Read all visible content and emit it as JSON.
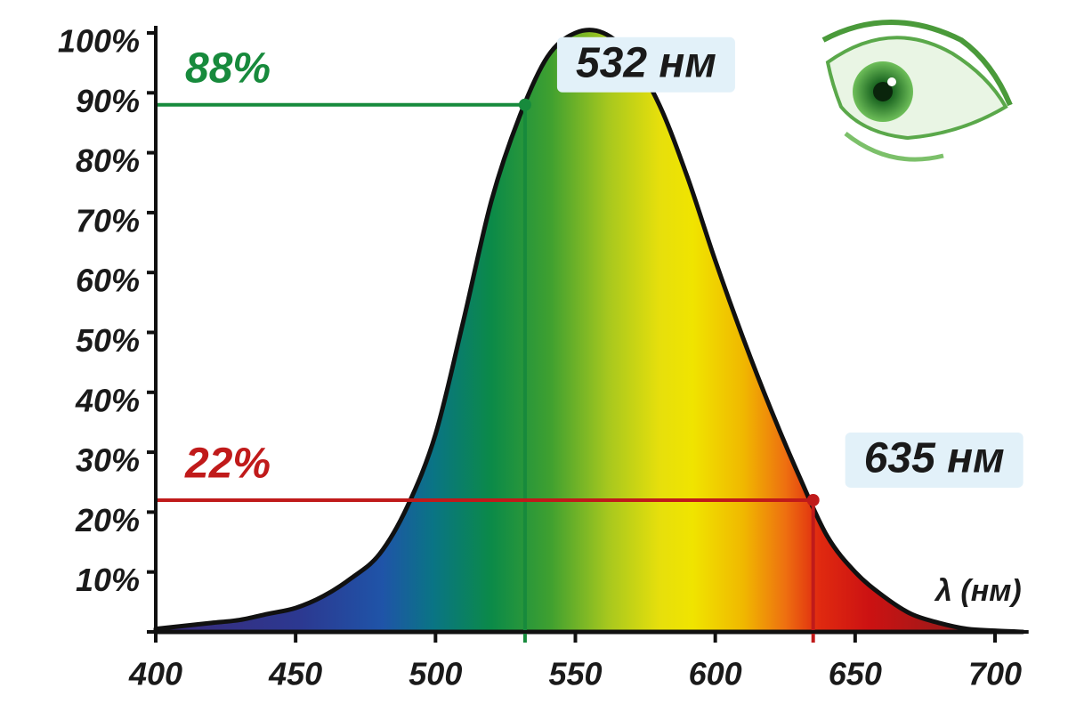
{
  "chart_data": {
    "type": "area",
    "x": [
      400,
      410,
      420,
      430,
      440,
      450,
      460,
      470,
      480,
      490,
      500,
      510,
      520,
      530,
      540,
      550,
      560,
      570,
      580,
      590,
      600,
      610,
      620,
      630,
      640,
      650,
      660,
      670,
      680,
      690,
      700,
      710
    ],
    "values": [
      0.5,
      1,
      1.5,
      2,
      3,
      4,
      6,
      9,
      13,
      21,
      33,
      52,
      72,
      86,
      96,
      100,
      100,
      96,
      88,
      76,
      62,
      49,
      37,
      26,
      16,
      10,
      6,
      3,
      1.5,
      0.5,
      0.2,
      0
    ],
    "xlim": [
      400,
      712
    ],
    "ylim": [
      0,
      100
    ],
    "xticks": [
      400,
      450,
      500,
      550,
      600,
      650,
      700
    ],
    "yticks": [
      {
        "value": 10,
        "label": "10%"
      },
      {
        "value": 20,
        "label": "20%"
      },
      {
        "value": 30,
        "label": "30%"
      },
      {
        "value": 40,
        "label": "40%"
      },
      {
        "value": 50,
        "label": "50%"
      },
      {
        "value": 60,
        "label": "60%"
      },
      {
        "value": 70,
        "label": "70%"
      },
      {
        "value": 80,
        "label": "80%"
      },
      {
        "value": 90,
        "label": "90%"
      },
      {
        "value": 100,
        "label": "100%"
      }
    ],
    "x_label": "λ (нм)",
    "markers": [
      {
        "x": 532,
        "y": 88,
        "x_label": "532 нм",
        "y_label": "88%",
        "color": "#178a3c"
      },
      {
        "x": 635,
        "y": 22,
        "x_label": "635 нм",
        "y_label": "22%",
        "color": "#c01a1a"
      }
    ]
  }
}
